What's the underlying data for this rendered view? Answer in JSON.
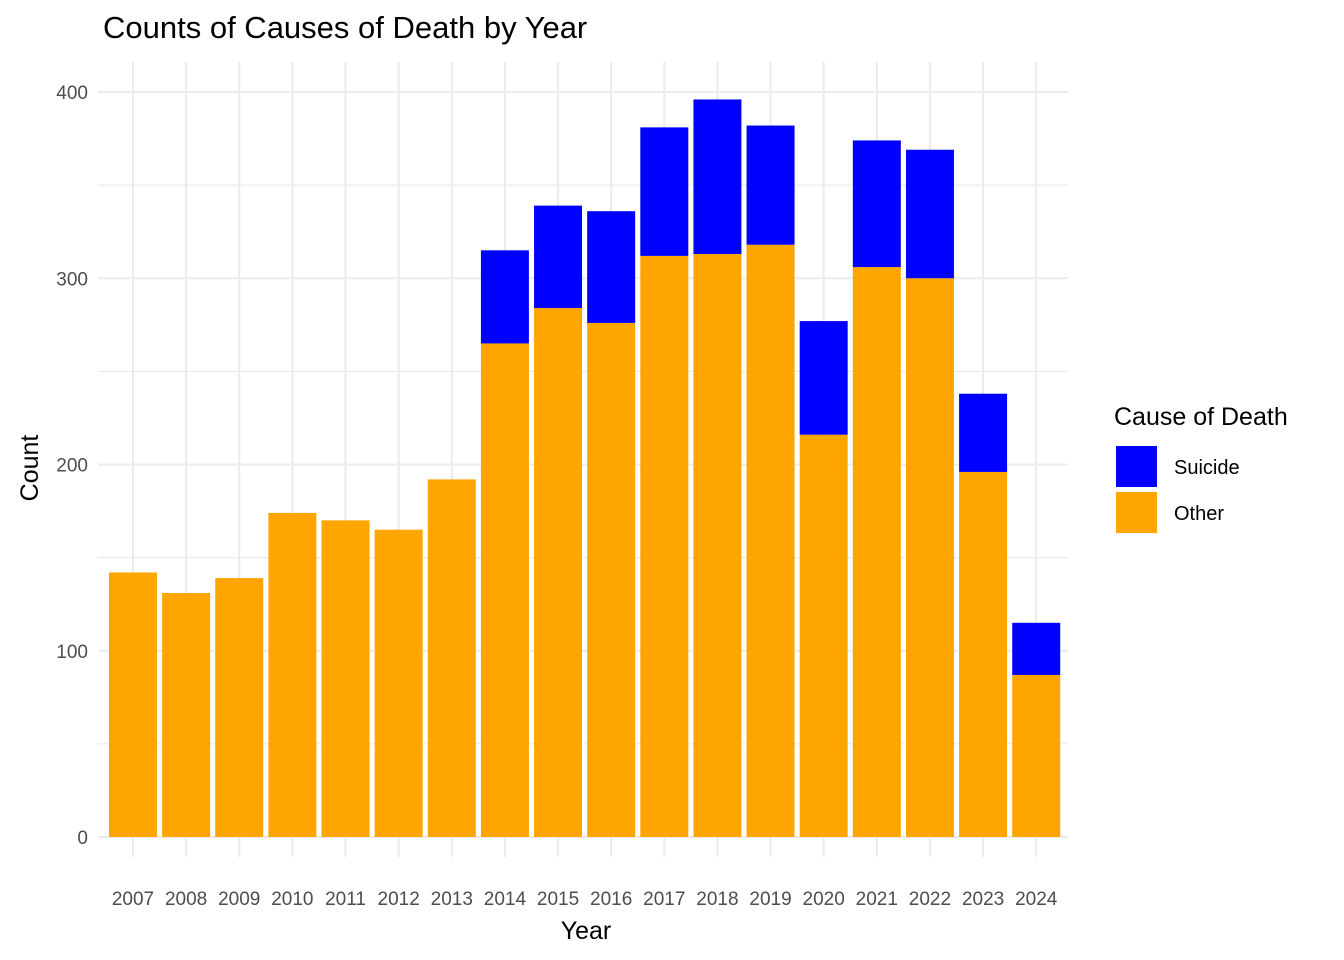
{
  "chart_data": {
    "type": "bar",
    "stacked": true,
    "title": "Counts of Causes of Death by Year",
    "xlabel": "Year",
    "ylabel": "Count",
    "categories": [
      "2007",
      "2008",
      "2009",
      "2010",
      "2011",
      "2012",
      "2013",
      "2014",
      "2015",
      "2016",
      "2017",
      "2018",
      "2019",
      "2020",
      "2021",
      "2022",
      "2023",
      "2024"
    ],
    "series": [
      {
        "name": "Other",
        "color": "#FFA500",
        "values": [
          142,
          131,
          139,
          174,
          170,
          165,
          192,
          265,
          284,
          276,
          312,
          313,
          318,
          216,
          306,
          300,
          196,
          87
        ]
      },
      {
        "name": "Suicide",
        "color": "#0000FF",
        "values": [
          0,
          0,
          0,
          0,
          0,
          0,
          0,
          50,
          55,
          60,
          69,
          83,
          64,
          61,
          68,
          69,
          42,
          28
        ]
      }
    ],
    "ylim": [
      0,
      410
    ],
    "yticks": [
      0,
      100,
      200,
      300,
      400
    ],
    "grid": true,
    "legend": {
      "title": "Cause of Death",
      "placement": "right",
      "order": [
        "Suicide",
        "Other"
      ]
    }
  }
}
